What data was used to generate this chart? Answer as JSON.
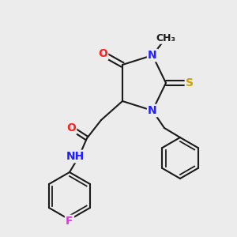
{
  "bg_color": "#ececec",
  "bond_color": "#1a1a1a",
  "atom_colors": {
    "N": "#2020ff",
    "O": "#ff2020",
    "S": "#c8a000",
    "F": "#cc44cc",
    "H": "#448888",
    "C": "#1a1a1a"
  },
  "bond_width": 1.5,
  "font_size": 10
}
